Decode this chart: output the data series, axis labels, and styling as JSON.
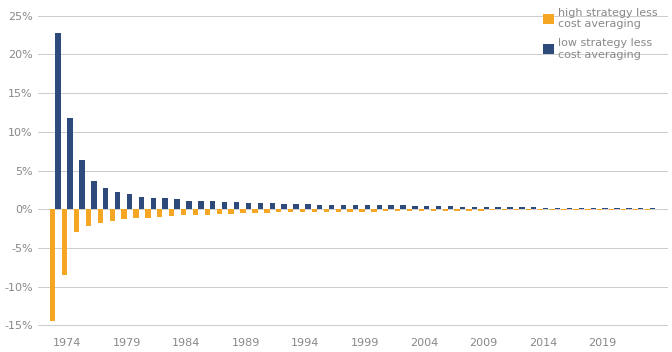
{
  "title": "",
  "years": [
    1973,
    1974,
    1975,
    1976,
    1977,
    1978,
    1979,
    1980,
    1981,
    1982,
    1983,
    1984,
    1985,
    1986,
    1987,
    1988,
    1989,
    1990,
    1991,
    1992,
    1993,
    1994,
    1995,
    1996,
    1997,
    1998,
    1999,
    2000,
    2001,
    2002,
    2003,
    2004,
    2005,
    2006,
    2007,
    2008,
    2009,
    2010,
    2011,
    2012,
    2013,
    2014,
    2015,
    2016,
    2017,
    2018,
    2019,
    2020,
    2021,
    2022,
    2023
  ],
  "high_strategy": [
    -0.145,
    -0.085,
    -0.03,
    -0.022,
    -0.018,
    -0.015,
    -0.013,
    -0.012,
    -0.011,
    -0.01,
    -0.009,
    -0.008,
    -0.007,
    -0.007,
    -0.006,
    -0.006,
    -0.005,
    -0.005,
    -0.005,
    -0.004,
    -0.004,
    -0.004,
    -0.004,
    -0.003,
    -0.003,
    -0.003,
    -0.003,
    -0.003,
    -0.002,
    -0.002,
    -0.002,
    -0.002,
    -0.002,
    -0.002,
    -0.002,
    -0.002,
    -0.002,
    -0.001,
    -0.001,
    -0.001,
    -0.001,
    -0.001,
    -0.001,
    -0.001,
    -0.001,
    -0.001,
    -0.001,
    -0.001,
    -0.001,
    -0.001,
    -0.001
  ],
  "low_strategy": [
    0.228,
    0.118,
    0.063,
    0.037,
    0.028,
    0.022,
    0.019,
    0.016,
    0.015,
    0.014,
    0.013,
    0.011,
    0.01,
    0.01,
    0.009,
    0.009,
    0.008,
    0.008,
    0.008,
    0.007,
    0.007,
    0.007,
    0.006,
    0.006,
    0.006,
    0.005,
    0.005,
    0.005,
    0.005,
    0.005,
    0.004,
    0.004,
    0.004,
    0.004,
    0.003,
    0.003,
    0.003,
    0.003,
    0.003,
    0.003,
    0.003,
    0.002,
    0.002,
    0.002,
    0.002,
    0.002,
    0.002,
    0.002,
    0.002,
    0.001,
    0.001
  ],
  "high_color": "#F5A623",
  "low_color": "#2E4A7A",
  "bar_width": 0.45,
  "ylim": [
    -0.16,
    0.265
  ],
  "yticks": [
    -0.15,
    -0.1,
    -0.05,
    0.0,
    0.05,
    0.1,
    0.15,
    0.2,
    0.25
  ],
  "xlim_left": 1971.5,
  "xlim_right": 2024.5,
  "xtick_years": [
    1974,
    1979,
    1984,
    1989,
    1994,
    1999,
    2004,
    2009,
    2014,
    2019
  ],
  "legend_high": "high strategy less\ncost averaging",
  "legend_low": "low strategy less\ncost averaging",
  "bg_color": "#FFFFFF",
  "grid_color": "#CCCCCC",
  "tick_color": "#888888",
  "tick_fontsize": 8,
  "legend_fontsize": 8
}
